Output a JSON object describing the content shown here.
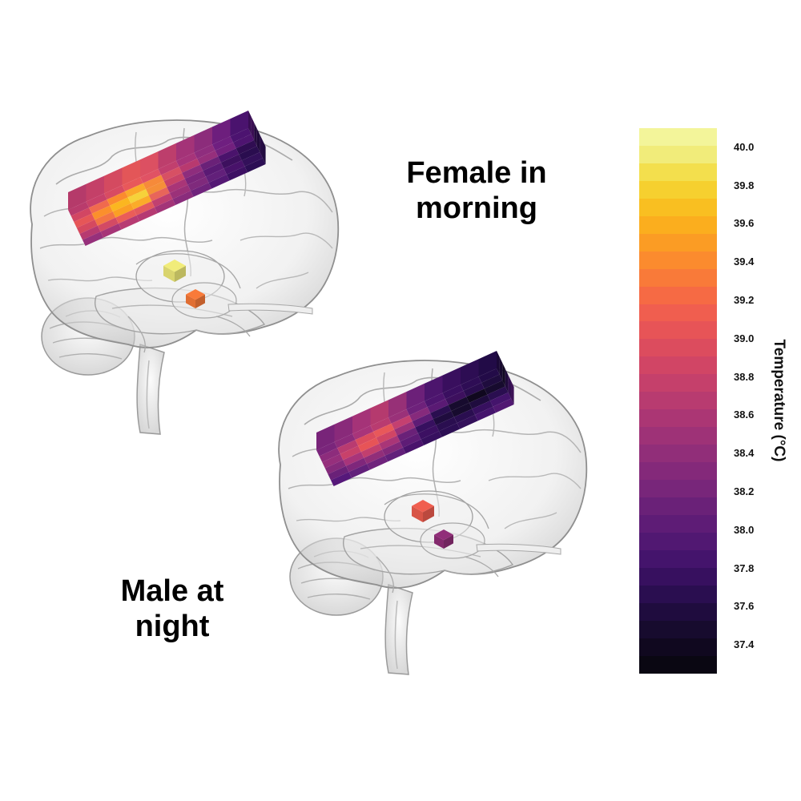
{
  "labels": {
    "female": [
      "Female in",
      "morning"
    ],
    "male": [
      "Male at",
      "night"
    ]
  },
  "colorbar": {
    "title": "Temperature (°C)",
    "min": 37.25,
    "max": 40.1,
    "ticks": [
      "40.0",
      "39.8",
      "39.6",
      "39.4",
      "39.2",
      "39.0",
      "38.8",
      "38.6",
      "38.4",
      "38.2",
      "38.0",
      "37.8",
      "37.6",
      "37.4"
    ],
    "palette": [
      "#000004",
      "#0b0724",
      "#1f0c48",
      "#3b0f70",
      "#57157e",
      "#721f81",
      "#8c2981",
      "#a8327d",
      "#c43c75",
      "#de4968",
      "#f1605d",
      "#fa7f5e",
      "#fd9f6c",
      "#fcc07a",
      "#fde0a0",
      "#fcfdbf"
    ],
    "colors": [
      "#0a0712",
      "#10081f",
      "#170b2e",
      "#1f0c3e",
      "#2a0e50",
      "#37105f",
      "#44146c",
      "#511872",
      "#5e1c76",
      "#6a2178",
      "#78267a",
      "#84297a",
      "#912e79",
      "#9e3277",
      "#ab3674",
      "#b83b70",
      "#c5406b",
      "#d14565",
      "#dc4c5e",
      "#e75457",
      "#f05e4f",
      "#f66a44",
      "#f97a39",
      "#fb8b2e",
      "#fb9c24",
      "#fbae1e",
      "#f9bf21",
      "#f6d02f",
      "#f3df4d",
      "#f1ec7a",
      "#f3f59a"
    ]
  },
  "brains": [
    {
      "id": "female-morning",
      "grid": [
        [
          "#b93b6c",
          "#c8416a",
          "#d84b62",
          "#e8585a",
          "#e05264",
          "#c13f6e",
          "#a7347a",
          "#8f2d7e",
          "#6f1f80",
          "#4c1370"
        ],
        [
          "#d24663",
          "#f06a4e",
          "#fb8b2e",
          "#fba92a",
          "#f68a3a",
          "#d75064",
          "#b8396f",
          "#962f7c",
          "#72207e",
          "#4e1470"
        ],
        [
          "#e65657",
          "#fb8f2c",
          "#fbb620",
          "#f6d23a",
          "#f58f39",
          "#c94367",
          "#8e2d7d",
          "#6a2178",
          "#4a136c",
          "#300d52"
        ],
        [
          "#d5495f",
          "#f37544",
          "#fb9f24",
          "#fbac29",
          "#e8655a",
          "#a93577",
          "#7b267b",
          "#5a1a74",
          "#3d105e",
          "#2a0d4f"
        ],
        [
          "#b73a70",
          "#d34a64",
          "#ea5d58",
          "#e45a5c",
          "#c14070",
          "#9b3179",
          "#7f2a7c",
          "#62207a",
          "#48126a",
          "#33105a"
        ],
        [
          "#96307b",
          "#a63577",
          "#b73b72",
          "#b53a72",
          "#a33478",
          "#8a2c7c",
          "#6f237c",
          "#541874",
          "#3d1063",
          "#2c0e54"
        ]
      ],
      "cubes": [
        "#f1ec7a",
        "#f97a39"
      ]
    },
    {
      "id": "male-night",
      "grid": [
        [
          "#7a257b",
          "#8c2b7c",
          "#a8347a",
          "#b93b70",
          "#9a3179",
          "#6e217b",
          "#4e156f",
          "#3a0f60",
          "#2e0d55",
          "#230b48"
        ],
        [
          "#8d2c7c",
          "#b93b70",
          "#dc4c5e",
          "#e8585a",
          "#c44070",
          "#862a7c",
          "#5a1a74",
          "#3d105e",
          "#2a0d4f",
          "#1f0c3e"
        ],
        [
          "#962f7c",
          "#c8416a",
          "#e75457",
          "#d04565",
          "#9a3179",
          "#5e1c76",
          "#2a0e50",
          "#170b2e",
          "#10081f",
          "#170b2e"
        ],
        [
          "#842a7b",
          "#a8347a",
          "#c23f6e",
          "#a93577",
          "#6a2178",
          "#37105f",
          "#1f0c3e",
          "#170b2e",
          "#1f0c3e",
          "#2a0e50"
        ],
        [
          "#6a2178",
          "#7f277b",
          "#912e79",
          "#84297a",
          "#5e1c76",
          "#3c1062",
          "#2a0e50",
          "#2a0e50",
          "#37105f",
          "#44146c"
        ],
        [
          "#56187a",
          "#62207a",
          "#6f237c",
          "#62207a",
          "#4a136c",
          "#37105f",
          "#2c0e54",
          "#33105a",
          "#44146c",
          "#511872"
        ]
      ],
      "cubes": [
        "#f05e4f",
        "#912e79"
      ]
    }
  ]
}
